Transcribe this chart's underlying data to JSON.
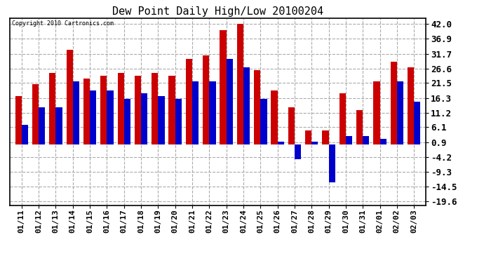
{
  "title": "Dew Point Daily High/Low 20100204",
  "copyright": "Copyright 2010 Cartronics.com",
  "dates": [
    "01/11",
    "01/12",
    "01/13",
    "01/14",
    "01/15",
    "01/16",
    "01/17",
    "01/18",
    "01/19",
    "01/20",
    "01/21",
    "01/22",
    "01/23",
    "01/24",
    "01/25",
    "01/26",
    "01/27",
    "01/28",
    "01/29",
    "01/30",
    "01/31",
    "02/01",
    "02/02",
    "02/03"
  ],
  "highs": [
    17,
    21,
    25,
    33,
    23,
    24,
    25,
    24,
    25,
    24,
    30,
    31,
    40,
    42,
    26,
    19,
    13,
    5,
    5,
    18,
    12,
    22,
    29,
    27
  ],
  "lows": [
    7,
    13,
    13,
    22,
    19,
    19,
    16,
    18,
    17,
    16,
    22,
    22,
    30,
    27,
    16,
    1,
    -5,
    1,
    -13,
    3,
    3,
    2,
    22,
    15
  ],
  "high_color": "#cc0000",
  "low_color": "#0000cc",
  "background_color": "#ffffff",
  "plot_background": "#ffffff",
  "grid_color": "#aaaaaa",
  "ytick_values": [
    -19.6,
    -14.5,
    -9.3,
    -4.2,
    0.9,
    6.1,
    11.2,
    16.3,
    21.5,
    26.6,
    31.7,
    36.9,
    42.0
  ],
  "ytick_labels": [
    "-19.6",
    "-14.5",
    "-9.3",
    "-4.2",
    "0.9",
    "6.1",
    "11.2",
    "16.3",
    "21.5",
    "26.6",
    "31.7",
    "36.9",
    "42.0"
  ],
  "ylim_low": -21,
  "ylim_high": 44,
  "bar_width": 0.38,
  "title_fontsize": 11,
  "tick_fontsize": 8,
  "ytick_fontsize": 9
}
